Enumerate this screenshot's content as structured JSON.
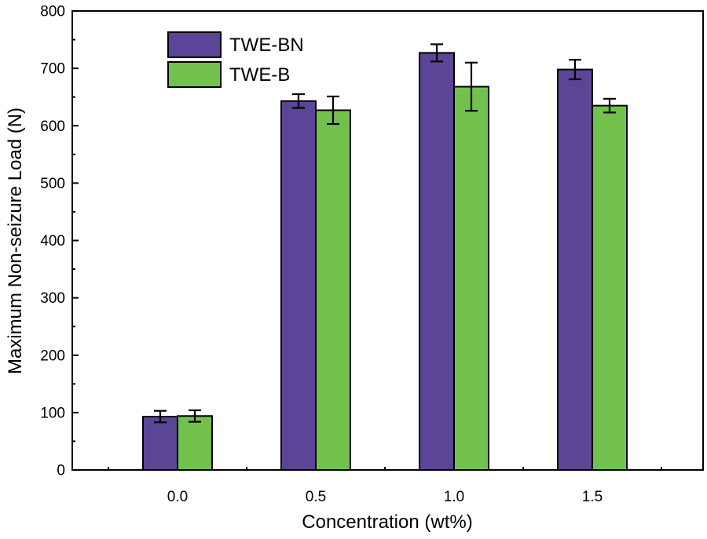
{
  "chart_data": {
    "type": "bar",
    "title": "",
    "xlabel": "Concentration (wt%)",
    "ylabel": "Maximum Non-seizure Load (N)",
    "categories": [
      "0.0",
      "0.5",
      "1.0",
      "1.5"
    ],
    "ylim": [
      0,
      800
    ],
    "yticks": [
      "0",
      "100",
      "200",
      "300",
      "400",
      "500",
      "600",
      "700",
      "800"
    ],
    "grid": false,
    "legend_position": "top-left",
    "series": [
      {
        "name": "TWE-BN",
        "color": "#5b4597",
        "values": [
          93,
          643,
          727,
          698
        ],
        "errors": [
          10,
          12,
          15,
          17
        ]
      },
      {
        "name": "TWE-B",
        "color": "#73c14d",
        "values": [
          94,
          627,
          668,
          635
        ],
        "errors": [
          10,
          24,
          42,
          12
        ]
      }
    ]
  }
}
